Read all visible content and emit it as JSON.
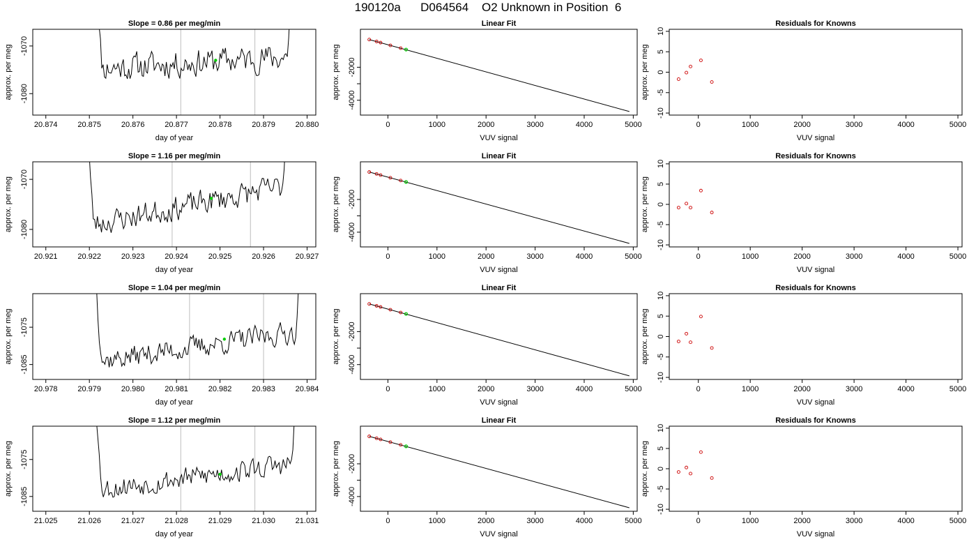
{
  "header": {
    "title": "190120a      D064564    O2 Unknown in Position  6"
  },
  "colors": {
    "line": "#000000",
    "marker_green": "#00cc00",
    "residual_red": "#cc0000",
    "vline_gray": "#c8c8c8"
  },
  "chart_data": [
    {
      "row": 1,
      "panel": "timeseries",
      "type": "line",
      "title": "Slope =  0.86  per meg/min",
      "xlabel": "day of year",
      "ylabel": "approx. per meg",
      "xlim": [
        20.8737,
        20.8802
      ],
      "ylim": [
        -1084.5,
        -1066.5
      ],
      "xticks": [
        20.874,
        20.875,
        20.876,
        20.877,
        20.878,
        20.879,
        20.88
      ],
      "xtick_labels": [
        "20.874",
        "20.875",
        "20.876",
        "20.877",
        "20.878",
        "20.879",
        "20.880"
      ],
      "yticks": [
        -1070,
        -1080
      ],
      "ytick_labels": [
        "-1070",
        "-1080"
      ],
      "vlines": [
        20.8771,
        20.8788
      ],
      "x_start": 20.8751,
      "x_end": 20.8797,
      "base_start": -1074.8,
      "base_end": -1072.2,
      "noise": 2.6,
      "seed": 11,
      "green_point": {
        "x": 20.8779,
        "y": -1073.0
      }
    },
    {
      "row": 1,
      "panel": "fit",
      "type": "line",
      "title": "Linear Fit",
      "xlabel": "VUV signal",
      "ylabel": "approx. per meg",
      "xlim": [
        -560,
        5080
      ],
      "ylim": [
        -4900,
        300
      ],
      "xticks": [
        0,
        1000,
        2000,
        3000,
        4000,
        5000
      ],
      "xtick_labels": [
        "0",
        "1000",
        "2000",
        "3000",
        "4000",
        "5000"
      ],
      "yticks": [
        -2000,
        -3000,
        -4000
      ],
      "ytick_labels": [
        "-2000",
        "",
        "-4000"
      ],
      "line": [
        [
          -380,
          -323
        ],
        [
          4920,
          -4685
        ]
      ],
      "points": [
        [
          -380,
          -323
        ],
        [
          -230,
          -440
        ],
        [
          -150,
          -509
        ],
        [
          50,
          -674
        ],
        [
          260,
          -843
        ]
      ],
      "green_point": [
        370,
        -930
      ]
    },
    {
      "row": 1,
      "panel": "residuals",
      "type": "scatter",
      "title": "Residuals for Knowns",
      "xlabel": "VUV signal",
      "ylabel": "approx. per meg",
      "xlim": [
        -560,
        5080
      ],
      "ylim": [
        -10.5,
        10.5
      ],
      "xticks": [
        0,
        1000,
        2000,
        3000,
        4000,
        5000
      ],
      "xtick_labels": [
        "0",
        "1000",
        "2000",
        "3000",
        "4000",
        "5000"
      ],
      "yticks": [
        10,
        5,
        0,
        -5,
        -10
      ],
      "ytick_labels": [
        "10",
        "5",
        "0",
        "-5",
        "-10"
      ],
      "points": [
        [
          -380,
          -1.7
        ],
        [
          -230,
          -0.1
        ],
        [
          -150,
          1.4
        ],
        [
          50,
          2.9
        ],
        [
          260,
          -2.4
        ]
      ]
    },
    {
      "row": 2,
      "panel": "timeseries",
      "type": "line",
      "title": "Slope =  1.16  per meg/min",
      "xlabel": "day of year",
      "ylabel": "approx. per meg",
      "xlim": [
        20.9207,
        20.9272
      ],
      "ylim": [
        -1083.5,
        -1066.5
      ],
      "xticks": [
        20.921,
        20.922,
        20.923,
        20.924,
        20.925,
        20.926,
        20.927
      ],
      "xtick_labels": [
        "20.921",
        "20.922",
        "20.923",
        "20.924",
        "20.925",
        "20.926",
        "20.927"
      ],
      "yticks": [
        -1070,
        -1080
      ],
      "ytick_labels": [
        "-1070",
        "-1080"
      ],
      "vlines": [
        20.9239,
        20.9257
      ],
      "x_start": 20.9219,
      "x_end": 20.9266,
      "base_start": -1079.3,
      "base_end": -1071.2,
      "noise": 2.2,
      "seed": 23,
      "green_point": {
        "x": 20.9248,
        "y": -1073.8
      }
    },
    {
      "row": 2,
      "panel": "fit",
      "type": "line",
      "title": "Linear Fit",
      "xlabel": "VUV signal",
      "ylabel": "approx. per meg",
      "xlim": [
        -560,
        5080
      ],
      "ylim": [
        -4900,
        300
      ],
      "xticks": [
        0,
        1000,
        2000,
        3000,
        4000,
        5000
      ],
      "xtick_labels": [
        "0",
        "1000",
        "2000",
        "3000",
        "4000",
        "5000"
      ],
      "yticks": [
        -2000,
        -3000,
        -4000
      ],
      "ytick_labels": [
        "-2000",
        "",
        "-4000"
      ],
      "line": [
        [
          -380,
          -323
        ],
        [
          4920,
          -4685
        ]
      ],
      "points": [
        [
          -380,
          -323
        ],
        [
          -230,
          -440
        ],
        [
          -150,
          -509
        ],
        [
          50,
          -674
        ],
        [
          260,
          -843
        ]
      ],
      "green_point": [
        370,
        -930
      ]
    },
    {
      "row": 2,
      "panel": "residuals",
      "type": "scatter",
      "title": "Residuals for Knowns",
      "xlabel": "VUV signal",
      "ylabel": "approx. per meg",
      "xlim": [
        -560,
        5080
      ],
      "ylim": [
        -10.5,
        10.5
      ],
      "xticks": [
        0,
        1000,
        2000,
        3000,
        4000,
        5000
      ],
      "xtick_labels": [
        "0",
        "1000",
        "2000",
        "3000",
        "4000",
        "5000"
      ],
      "yticks": [
        10,
        5,
        0,
        -5,
        -10
      ],
      "ytick_labels": [
        "10",
        "5",
        "0",
        "-5",
        "-10"
      ],
      "points": [
        [
          -380,
          -0.8
        ],
        [
          -230,
          0.2
        ],
        [
          -150,
          -0.8
        ],
        [
          50,
          3.4
        ],
        [
          260,
          -2.0
        ]
      ]
    },
    {
      "row": 3,
      "panel": "timeseries",
      "type": "line",
      "title": "Slope =  1.04  per meg/min",
      "xlabel": "day of year",
      "ylabel": "approx. per meg",
      "xlim": [
        20.9777,
        20.9842
      ],
      "ylim": [
        -1089,
        -1066
      ],
      "xticks": [
        20.978,
        20.979,
        20.98,
        20.981,
        20.982,
        20.983,
        20.984
      ],
      "xtick_labels": [
        "20.978",
        "20.979",
        "20.980",
        "20.981",
        "20.982",
        "20.983",
        "20.984"
      ],
      "yticks": [
        -1075,
        -1085
      ],
      "ytick_labels": [
        "-1075",
        "-1085"
      ],
      "vlines": [
        20.9813,
        20.983
      ],
      "x_start": 20.9791,
      "x_end": 20.9839,
      "base_start": -1084.3,
      "base_end": -1076.0,
      "noise": 2.7,
      "seed": 37,
      "green_point": {
        "x": 20.9821,
        "y": -1078.2
      }
    },
    {
      "row": 3,
      "panel": "fit",
      "type": "line",
      "title": "Linear Fit",
      "xlabel": "VUV signal",
      "ylabel": "approx. per meg",
      "xlim": [
        -560,
        5080
      ],
      "ylim": [
        -4900,
        300
      ],
      "xticks": [
        0,
        1000,
        2000,
        3000,
        4000,
        5000
      ],
      "xtick_labels": [
        "0",
        "1000",
        "2000",
        "3000",
        "4000",
        "5000"
      ],
      "yticks": [
        -2000,
        -3000,
        -4000
      ],
      "ytick_labels": [
        "-2000",
        "",
        "-4000"
      ],
      "line": [
        [
          -380,
          -323
        ],
        [
          4920,
          -4685
        ]
      ],
      "points": [
        [
          -380,
          -323
        ],
        [
          -230,
          -440
        ],
        [
          -150,
          -509
        ],
        [
          50,
          -674
        ],
        [
          260,
          -843
        ]
      ],
      "green_point": [
        370,
        -930
      ]
    },
    {
      "row": 3,
      "panel": "residuals",
      "type": "scatter",
      "title": "Residuals for Knowns",
      "xlabel": "VUV signal",
      "ylabel": "approx. per meg",
      "xlim": [
        -560,
        5080
      ],
      "ylim": [
        -10.5,
        10.5
      ],
      "xticks": [
        0,
        1000,
        2000,
        3000,
        4000,
        5000
      ],
      "xtick_labels": [
        "0",
        "1000",
        "2000",
        "3000",
        "4000",
        "5000"
      ],
      "yticks": [
        10,
        5,
        0,
        -5,
        -10
      ],
      "ytick_labels": [
        "10",
        "5",
        "0",
        "-5",
        "-10"
      ],
      "points": [
        [
          -380,
          -1.2
        ],
        [
          -230,
          0.7
        ],
        [
          -150,
          -1.4
        ],
        [
          50,
          4.9
        ],
        [
          260,
          -2.8
        ]
      ]
    },
    {
      "row": 4,
      "panel": "timeseries",
      "type": "line",
      "title": "Slope =  1.12  per meg/min",
      "xlabel": "day of year",
      "ylabel": "approx. per meg",
      "xlim": [
        21.0247,
        21.0312
      ],
      "ylim": [
        -1089,
        -1066
      ],
      "xticks": [
        21.025,
        21.026,
        21.027,
        21.028,
        21.029,
        21.03,
        21.031
      ],
      "xtick_labels": [
        "21.025",
        "21.026",
        "21.027",
        "21.028",
        "21.029",
        "21.030",
        "21.031"
      ],
      "yticks": [
        -1075,
        -1085
      ],
      "ytick_labels": [
        "-1075",
        "-1085"
      ],
      "vlines": [
        21.0281,
        21.0298
      ],
      "x_start": 21.0261,
      "x_end": 21.0308,
      "base_start": -1083.3,
      "base_end": -1076.0,
      "noise": 2.7,
      "seed": 53,
      "green_point": {
        "x": 21.029,
        "y": -1079.0
      }
    },
    {
      "row": 4,
      "panel": "fit",
      "type": "line",
      "title": "Linear Fit",
      "xlabel": "VUV signal",
      "ylabel": "approx. per meg",
      "xlim": [
        -560,
        5080
      ],
      "ylim": [
        -4900,
        300
      ],
      "xticks": [
        0,
        1000,
        2000,
        3000,
        4000,
        5000
      ],
      "xtick_labels": [
        "0",
        "1000",
        "2000",
        "3000",
        "4000",
        "5000"
      ],
      "yticks": [
        -2000,
        -3000,
        -4000
      ],
      "ytick_labels": [
        "-2000",
        "",
        "-4000"
      ],
      "line": [
        [
          -380,
          -323
        ],
        [
          4920,
          -4685
        ]
      ],
      "points": [
        [
          -380,
          -323
        ],
        [
          -230,
          -440
        ],
        [
          -150,
          -509
        ],
        [
          50,
          -674
        ],
        [
          260,
          -843
        ]
      ],
      "green_point": [
        370,
        -930
      ]
    },
    {
      "row": 4,
      "panel": "residuals",
      "type": "scatter",
      "title": "Residuals for Knowns",
      "xlabel": "VUV signal",
      "ylabel": "approx. per meg",
      "xlim": [
        -560,
        5080
      ],
      "ylim": [
        -10.5,
        10.5
      ],
      "xticks": [
        0,
        1000,
        2000,
        3000,
        4000,
        5000
      ],
      "xtick_labels": [
        "0",
        "1000",
        "2000",
        "3000",
        "4000",
        "5000"
      ],
      "yticks": [
        10,
        5,
        0,
        -5,
        -10
      ],
      "ytick_labels": [
        "10",
        "5",
        "0",
        "-5",
        "-10"
      ],
      "points": [
        [
          -380,
          -0.8
        ],
        [
          -230,
          0.3
        ],
        [
          -150,
          -1.2
        ],
        [
          50,
          4.1
        ],
        [
          260,
          -2.3
        ]
      ]
    }
  ]
}
